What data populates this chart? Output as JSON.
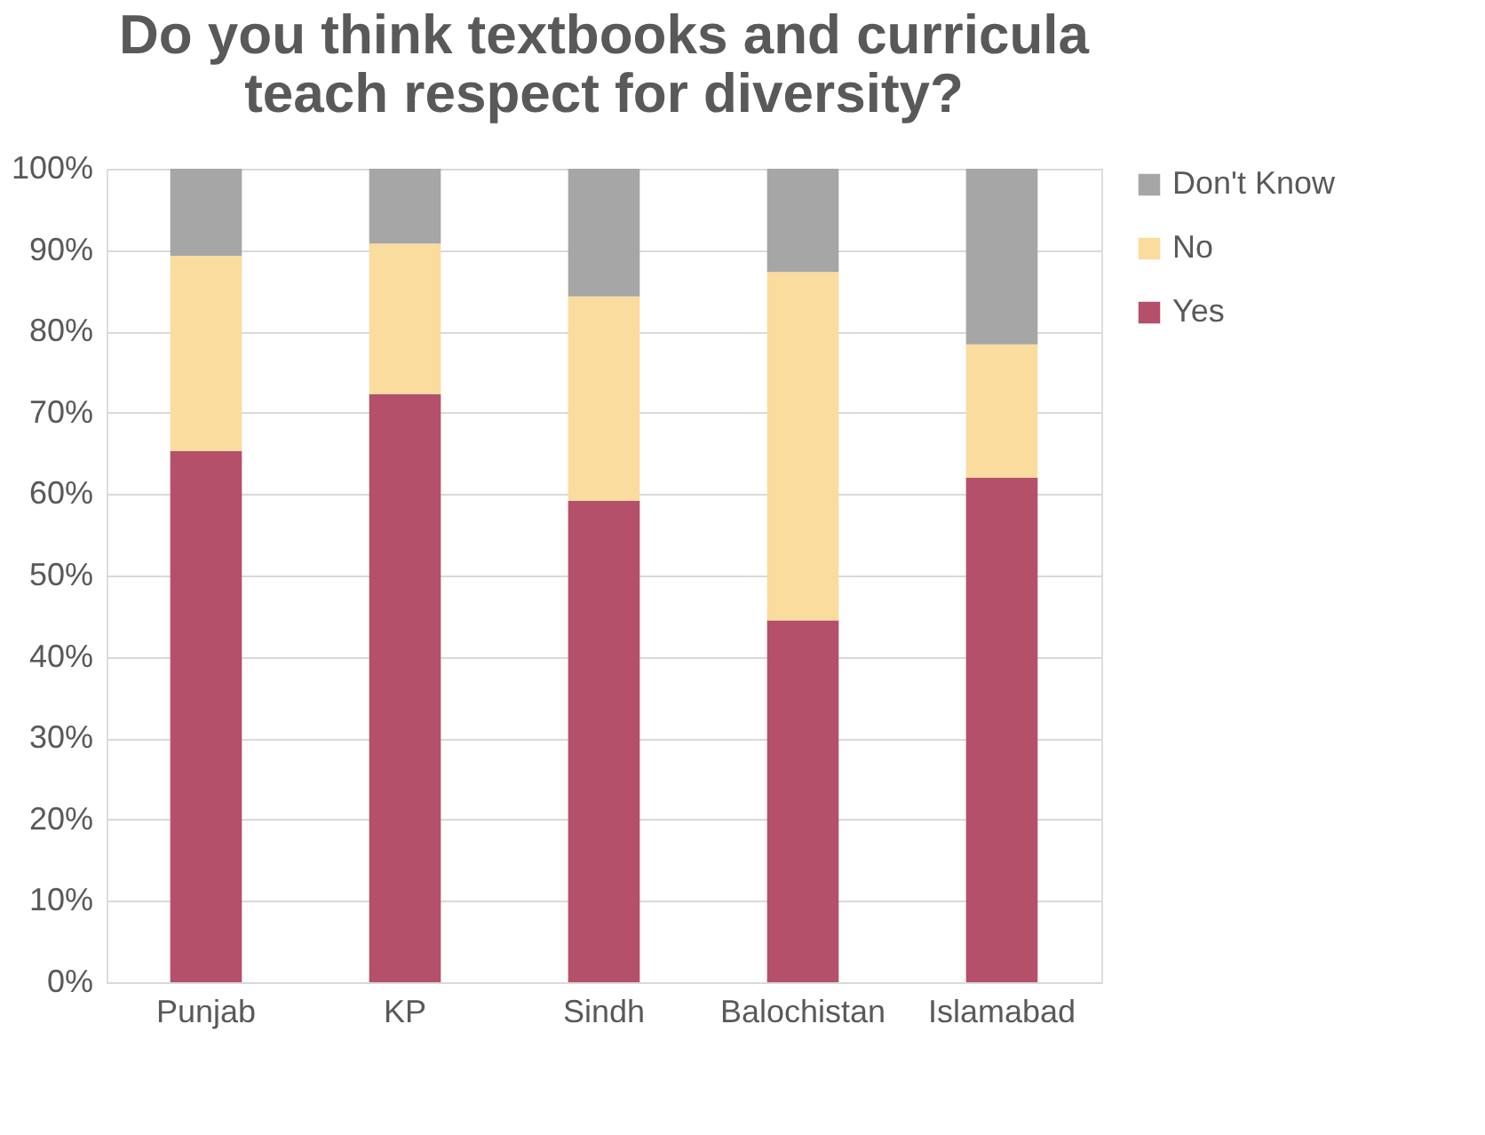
{
  "chart_data": {
    "type": "bar",
    "stacked": true,
    "title": "Do you think textbooks and curricula teach respect for diversity?",
    "categories": [
      "Punjab",
      "KP",
      "Sindh",
      "Balochistan",
      "Islamabad"
    ],
    "series": [
      {
        "name": "Yes",
        "color": "#b5506a",
        "values": [
          65.3,
          72.3,
          59.2,
          44.5,
          62.0
        ]
      },
      {
        "name": "No",
        "color": "#f9dc9e",
        "values": [
          24.0,
          18.5,
          25.1,
          42.8,
          16.4
        ]
      },
      {
        "name": "Don't Know",
        "color": "#a6a6a6",
        "values": [
          10.7,
          9.2,
          15.7,
          12.7,
          21.6
        ]
      }
    ],
    "ylim": [
      0,
      100
    ],
    "yticks": [
      {
        "value": 0,
        "label": "0%"
      },
      {
        "value": 10,
        "label": "10%"
      },
      {
        "value": 20,
        "label": "20%"
      },
      {
        "value": 30,
        "label": "30%"
      },
      {
        "value": 40,
        "label": "40%"
      },
      {
        "value": 50,
        "label": "50%"
      },
      {
        "value": 60,
        "label": "60%"
      },
      {
        "value": 70,
        "label": "70%"
      },
      {
        "value": 80,
        "label": "80%"
      },
      {
        "value": 90,
        "label": "90%"
      },
      {
        "value": 100,
        "label": "100%"
      }
    ],
    "grid": "y",
    "legend": "right"
  }
}
